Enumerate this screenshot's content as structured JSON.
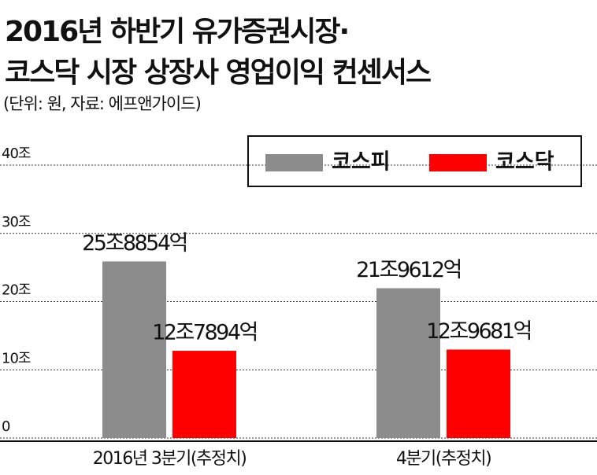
{
  "chart_data": {
    "type": "bar",
    "title": [
      "2016년 하반기 유가증권시장·",
      "코스닥 시장 상장사 영업이익 컨센서스"
    ],
    "subtitle": "(단위: 원, 자료: 에프앤가이드)",
    "categories": [
      "2016년 3분기(추정치)",
      "4분기(추정치)"
    ],
    "series": [
      {
        "name": "코스피",
        "color": "#8c8c8c",
        "values": [
          25.8854,
          21.9612
        ],
        "value_labels": [
          "25조8854억",
          "21조9612억"
        ]
      },
      {
        "name": "코스닥",
        "color": "#ff0000",
        "values": [
          12.7894,
          12.9681
        ],
        "value_labels": [
          "12조7894억",
          "12조9681억"
        ]
      }
    ],
    "ylim": [
      0,
      40
    ],
    "yticks": [
      0,
      {
        "value": 10,
        "label": "10조"
      },
      {
        "value": 20,
        "label": "20조"
      },
      {
        "value": 30,
        "label": "30조"
      },
      {
        "value": 40,
        "label": "40조"
      }
    ],
    "grid": true,
    "legend": "top-right"
  }
}
